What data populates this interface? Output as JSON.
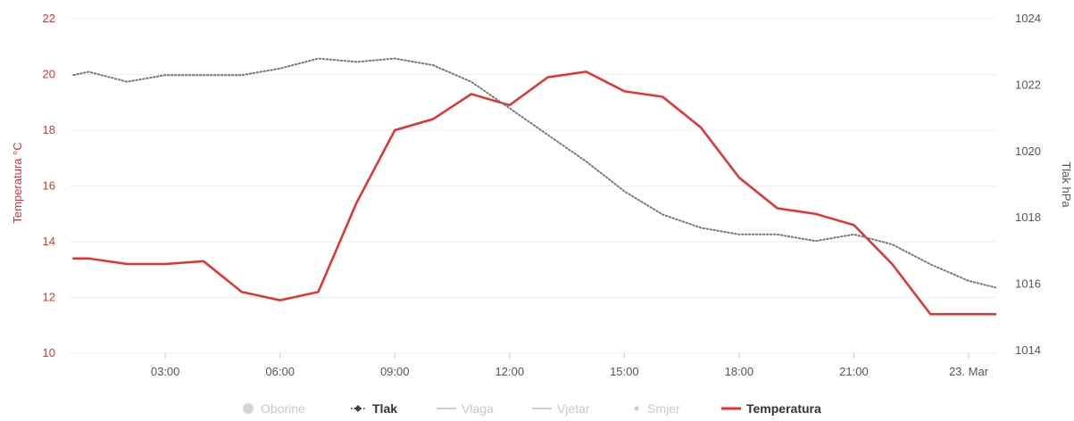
{
  "chart_data": {
    "type": "line",
    "y_left": {
      "label": "Temperatura °C",
      "range": [
        10,
        22
      ],
      "ticks": [
        "10",
        "12",
        "14",
        "16",
        "18",
        "20",
        "22"
      ],
      "color": "#e63030"
    },
    "y_right": {
      "label": "Tlak hPa",
      "range": [
        1014,
        1024
      ],
      "ticks": [
        "1014",
        "1016",
        "1018",
        "1020",
        "1022",
        "1024"
      ],
      "color": "#555555"
    },
    "x_axis": {
      "range_hours": [
        0.5,
        24.7
      ],
      "ticks": [
        {
          "hour": 3,
          "label": "03:00"
        },
        {
          "hour": 6,
          "label": "06:00"
        },
        {
          "hour": 9,
          "label": "09:00"
        },
        {
          "hour": 12,
          "label": "12:00"
        },
        {
          "hour": 15,
          "label": "15:00"
        },
        {
          "hour": 18,
          "label": "18:00"
        },
        {
          "hour": 21,
          "label": "21:00"
        },
        {
          "hour": 24,
          "label": "23. Mar"
        }
      ]
    },
    "grid": "horizontal",
    "legend_position": "bottom-center",
    "series": [
      {
        "name": "Temperatura",
        "axis": "left",
        "color": "#e63030",
        "style": "solid",
        "x": [
          0.6,
          1.0,
          2.0,
          3.0,
          4.0,
          5.0,
          6.0,
          7.0,
          8.0,
          9.0,
          10.0,
          11.0,
          12.0,
          13.0,
          14.0,
          15.0,
          16.0,
          17.0,
          18.0,
          19.0,
          20.0,
          21.0,
          22.0,
          23.0,
          24.0,
          24.7
        ],
        "values": [
          13.4,
          13.4,
          13.2,
          13.2,
          13.3,
          12.2,
          11.9,
          12.2,
          15.4,
          18.0,
          18.4,
          19.3,
          18.9,
          19.9,
          20.1,
          19.4,
          19.2,
          18.1,
          16.3,
          15.2,
          15.0,
          14.6,
          13.2,
          11.4,
          11.4,
          11.4
        ]
      },
      {
        "name": "Tlak",
        "axis": "right",
        "color": "#777777",
        "style": "dotted",
        "x": [
          0.6,
          1.0,
          2.0,
          3.0,
          4.0,
          5.0,
          6.0,
          7.0,
          8.0,
          9.0,
          10.0,
          11.0,
          12.0,
          13.0,
          14.0,
          15.0,
          16.0,
          17.0,
          18.0,
          19.0,
          20.0,
          21.0,
          22.0,
          23.0,
          24.0,
          24.7
        ],
        "values": [
          1022.3,
          1022.4,
          1022.1,
          1022.3,
          1022.3,
          1022.3,
          1022.5,
          1022.8,
          1022.7,
          1022.8,
          1022.6,
          1022.1,
          1021.3,
          1020.5,
          1019.7,
          1018.8,
          1018.1,
          1017.7,
          1017.5,
          1017.5,
          1017.3,
          1017.5,
          1017.2,
          1016.6,
          1016.1,
          1015.9
        ]
      }
    ],
    "legend": [
      {
        "label": "Oborine",
        "symbol": "circle",
        "active": false
      },
      {
        "label": "Tlak",
        "symbol": "line-dot",
        "active": true
      },
      {
        "label": "Vlaga",
        "symbol": "line",
        "active": false
      },
      {
        "label": "Vjetar",
        "symbol": "line",
        "active": false
      },
      {
        "label": "Smjer",
        "symbol": "dot",
        "active": false
      },
      {
        "label": "Temperatura",
        "symbol": "line",
        "active": true
      }
    ]
  }
}
